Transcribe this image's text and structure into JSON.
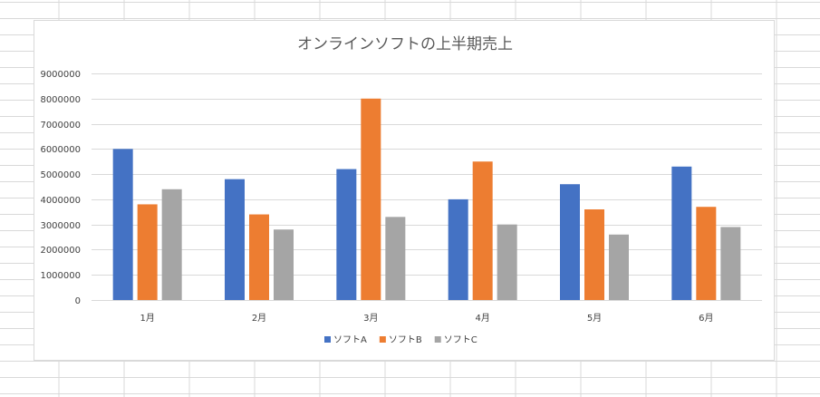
{
  "colors": {
    "sheet_grid": "#d9d9d9",
    "chart_border": "#d9d9d9",
    "gridline": "#d9d9d9",
    "text": "#404040",
    "title": "#595959"
  },
  "chart_data": {
    "type": "bar",
    "title": "オンラインソフトの上半期売上",
    "xlabel": "",
    "ylabel": "",
    "categories": [
      "1月",
      "2月",
      "3月",
      "4月",
      "5月",
      "6月"
    ],
    "series": [
      {
        "name": "ソフトA",
        "color": "#4472c4",
        "values": [
          6000000,
          4800000,
          5200000,
          4000000,
          4600000,
          5300000
        ]
      },
      {
        "name": "ソフトB",
        "color": "#ed7d31",
        "values": [
          3800000,
          3400000,
          8000000,
          5500000,
          3600000,
          3700000
        ]
      },
      {
        "name": "ソフトC",
        "color": "#a5a5a5",
        "values": [
          4400000,
          2800000,
          3300000,
          3000000,
          2600000,
          2900000
        ]
      }
    ],
    "ylim": [
      0,
      9000000
    ],
    "yticks": [
      "0",
      "1000000",
      "2000000",
      "3000000",
      "4000000",
      "5000000",
      "6000000",
      "7000000",
      "8000000",
      "9000000"
    ],
    "grid": true,
    "legend_position": "bottom"
  }
}
